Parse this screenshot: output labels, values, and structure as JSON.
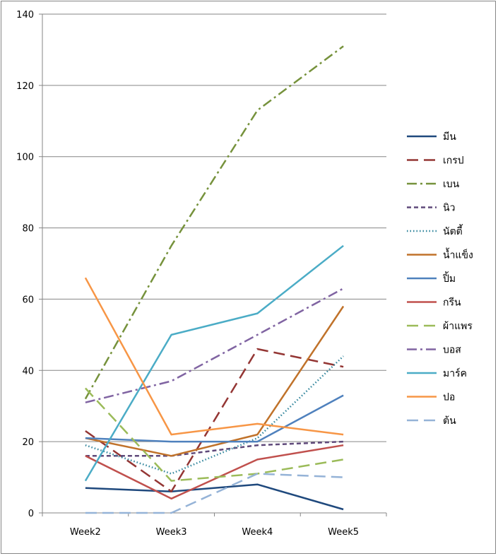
{
  "chart_data": {
    "type": "line",
    "title": "",
    "xlabel": "",
    "ylabel": "",
    "categories": [
      "Week2",
      "Week3",
      "Week4",
      "Week5"
    ],
    "ylim": [
      0,
      140
    ],
    "yticks": [
      0,
      20,
      40,
      60,
      80,
      100,
      120,
      140
    ],
    "grid": "horizontal",
    "legend_position": "right",
    "series": [
      {
        "name": "มีน",
        "values": [
          7,
          6,
          8,
          1
        ],
        "color": "#1F497D",
        "dash": "solid"
      },
      {
        "name": "เกรป",
        "values": [
          23,
          6,
          46,
          41
        ],
        "color": "#943634",
        "dash": "longdash"
      },
      {
        "name": "เบน",
        "values": [
          32,
          75,
          113,
          131
        ],
        "color": "#76923C",
        "dash": "dashdot"
      },
      {
        "name": "นิว",
        "values": [
          16,
          16,
          19,
          20
        ],
        "color": "#5F497A",
        "dash": "dash"
      },
      {
        "name": "นัตตี้",
        "values": [
          19,
          11,
          21,
          44
        ],
        "color": "#31859C",
        "dash": "dot"
      },
      {
        "name": "น้ำแข็ง",
        "values": [
          21,
          16,
          22,
          58
        ],
        "color": "#C0722A",
        "dash": "solid"
      },
      {
        "name": "ปิ้ม",
        "values": [
          21,
          20,
          20,
          33
        ],
        "color": "#4F81BD",
        "dash": "solid"
      },
      {
        "name": "กรีน",
        "values": [
          16,
          4,
          15,
          19
        ],
        "color": "#C0504D",
        "dash": "solid"
      },
      {
        "name": "ผ้าแพร",
        "values": [
          35,
          9,
          11,
          15
        ],
        "color": "#9BBB59",
        "dash": "longdash"
      },
      {
        "name": "บอส",
        "values": [
          31,
          37,
          50,
          63
        ],
        "color": "#8064A2",
        "dash": "dashdot"
      },
      {
        "name": "มาร์ค",
        "values": [
          9,
          50,
          56,
          75
        ],
        "color": "#4BACC6",
        "dash": "solid"
      },
      {
        "name": "ปอ",
        "values": [
          66,
          22,
          25,
          22
        ],
        "color": "#F79646",
        "dash": "solid"
      },
      {
        "name": "ต้น",
        "values": [
          0,
          0,
          11,
          10
        ],
        "color": "#95B3D7",
        "dash": "longdash"
      }
    ]
  }
}
